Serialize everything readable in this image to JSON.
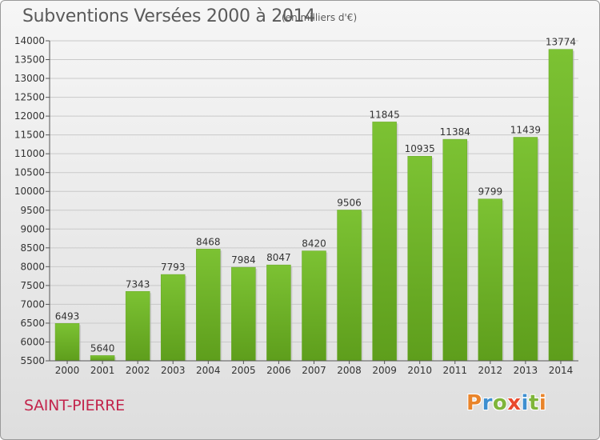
{
  "header": {
    "title": "Subventions Versées 2000 à 2014",
    "subtitle": "(en milliers d'€)"
  },
  "footer": {
    "commune": "SAINT-PIERRE",
    "logo_text": "Proxiti",
    "logo_colors": [
      "#e9842a",
      "#3e8fd0",
      "#7fb53a",
      "#e94a2e",
      "#3e8fd0",
      "#7fb53a",
      "#e9842a"
    ]
  },
  "chart_data": {
    "type": "bar",
    "categories": [
      "2000",
      "2001",
      "2002",
      "2003",
      "2004",
      "2005",
      "2006",
      "2007",
      "2008",
      "2009",
      "2010",
      "2011",
      "2012",
      "2013",
      "2014"
    ],
    "values": [
      6493,
      5640,
      7343,
      7793,
      8468,
      7984,
      8047,
      8420,
      9506,
      11845,
      10935,
      11384,
      9799,
      11439,
      13774
    ],
    "ylim": [
      5500,
      14000
    ],
    "yticks": [
      5500,
      6000,
      6500,
      7000,
      7500,
      8000,
      8500,
      9000,
      9500,
      10000,
      10500,
      11000,
      11500,
      12000,
      12500,
      13000,
      13500,
      14000
    ],
    "grid": true,
    "bar_color": "#7cc233",
    "bar_color_dark": "#5e9e1c"
  }
}
